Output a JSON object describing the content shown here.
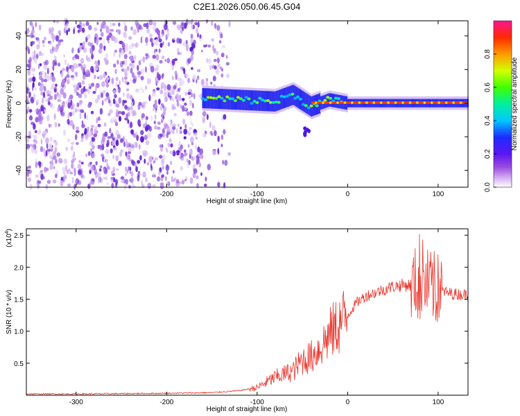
{
  "title": "C2E1.2026.050.06.45.G04",
  "colors": {
    "snr_line": "#e8332a",
    "background": "#ffffff",
    "axis": "#000000"
  },
  "chart_data": [
    {
      "type": "heatmap",
      "name": "spectrogram",
      "title": "C2E1.2026.050.06.45.G04",
      "xlabel": "Height of straight line (km)",
      "ylabel": "Frequency (Hz)",
      "xlim": [
        -355,
        133
      ],
      "ylim": [
        -50,
        49
      ],
      "xticks": [
        -300,
        -200,
        -100,
        0,
        100
      ],
      "yticks": [
        -40,
        -20,
        0,
        20,
        40
      ],
      "colorbar": {
        "label": "Normalized spectral amplitude",
        "range": [
          0,
          1
        ],
        "ticks": [
          0.0,
          0.2,
          0.4,
          0.6,
          0.8
        ],
        "tick_labels": [
          "0.0",
          "0.2",
          "0.4",
          "0.6",
          "0.8"
        ]
      },
      "noise_region_x": [
        -355,
        -145
      ],
      "signal_band": [
        {
          "x": -160,
          "y": 3
        },
        {
          "x": -120,
          "y": 2
        },
        {
          "x": -80,
          "y": 1
        },
        {
          "x": -60,
          "y": 5
        },
        {
          "x": -40,
          "y": -2
        },
        {
          "x": -20,
          "y": 2
        },
        {
          "x": 0,
          "y": 0
        },
        {
          "x": 50,
          "y": 0
        },
        {
          "x": 100,
          "y": 0
        },
        {
          "x": 133,
          "y": 0
        }
      ],
      "side_feature_x": -45,
      "side_feature_y": -15
    },
    {
      "type": "line",
      "name": "snr",
      "xlabel": "Height of straight line (km)",
      "ylabel": "SNR (10 * v/v)",
      "exponent_label": "(x10",
      "exponent_value": "4",
      "exponent_close": ")",
      "xlim": [
        -355,
        133
      ],
      "ylim": [
        0,
        2.6
      ],
      "xticks": [
        -300,
        -200,
        -100,
        0,
        100
      ],
      "yticks": [
        0.5,
        1.0,
        1.5,
        2.0,
        2.5
      ],
      "ytick_labels": [
        "0.5",
        "1.0",
        "1.5",
        "2.0",
        "2.5"
      ],
      "series": [
        {
          "name": "SNR",
          "x": [
            -355,
            -300,
            -200,
            -150,
            -120,
            -100,
            -80,
            -60,
            -50,
            -40,
            -30,
            -20,
            -10,
            0,
            10,
            20,
            30,
            40,
            50,
            60,
            70,
            80,
            90,
            100,
            110,
            120,
            133
          ],
          "y": [
            0.02,
            0.02,
            0.03,
            0.04,
            0.07,
            0.12,
            0.28,
            0.38,
            0.55,
            0.6,
            0.75,
            0.95,
            1.1,
            1.25,
            1.45,
            1.55,
            1.6,
            1.65,
            1.7,
            1.72,
            1.72,
            1.75,
            1.7,
            1.65,
            1.6,
            1.58,
            1.57
          ]
        }
      ]
    }
  ]
}
